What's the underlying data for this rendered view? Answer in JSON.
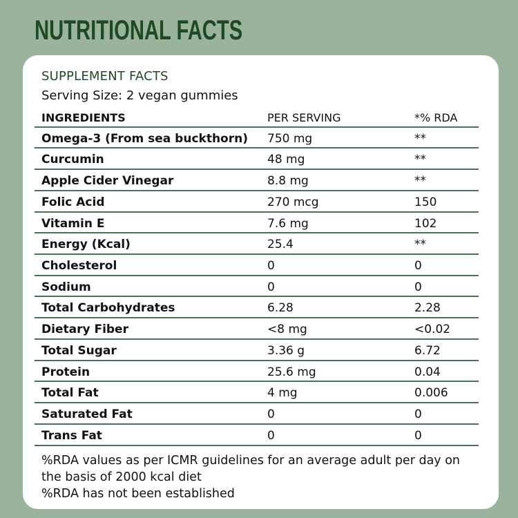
{
  "title": "NUTRITIONAL FACTS",
  "colors": {
    "background": "#9bb39d",
    "title": "#1d4a22",
    "card": "#ffffff",
    "divider": "#4f6f52",
    "text": "#111111"
  },
  "card": {
    "section_title": "SUPPLEMENT FACTS",
    "serving_size": "Serving Size: 2 vegan gummies",
    "table": {
      "headers": [
        "INGREDIENTS",
        "PER SERVING",
        "*% RDA"
      ],
      "rows": [
        [
          "Omega-3 (From sea buckthorn)",
          "750 mg",
          "**"
        ],
        [
          "Curcumin",
          "48 mg",
          "**"
        ],
        [
          "Apple Cider Vinegar",
          "8.8 mg",
          "**"
        ],
        [
          "Folic Acid",
          "270 mcg",
          "150"
        ],
        [
          "Vitamin E",
          "7.6 mg",
          "102"
        ],
        [
          "Energy (Kcal)",
          "25.4",
          "**"
        ],
        [
          "Cholesterol",
          "0",
          "0"
        ],
        [
          "Sodium",
          "0",
          "0"
        ],
        [
          "Total Carbohydrates",
          "6.28",
          "2.28"
        ],
        [
          "Dietary Fiber",
          "<8 mg",
          "<0.02"
        ],
        [
          "Total Sugar",
          "3.36 g",
          "6.72"
        ],
        [
          "Protein",
          "25.6 mg",
          "0.04"
        ],
        [
          "Total Fat",
          "4 mg",
          "0.006"
        ],
        [
          "Saturated Fat",
          "0",
          "0"
        ],
        [
          "Trans Fat",
          "0",
          "0"
        ]
      ]
    },
    "footnotes": [
      "%RDA values as per ICMR guidelines for an average adult per day on",
      "the basis of 2000 kcal diet",
      "%RDA has not been established"
    ]
  }
}
